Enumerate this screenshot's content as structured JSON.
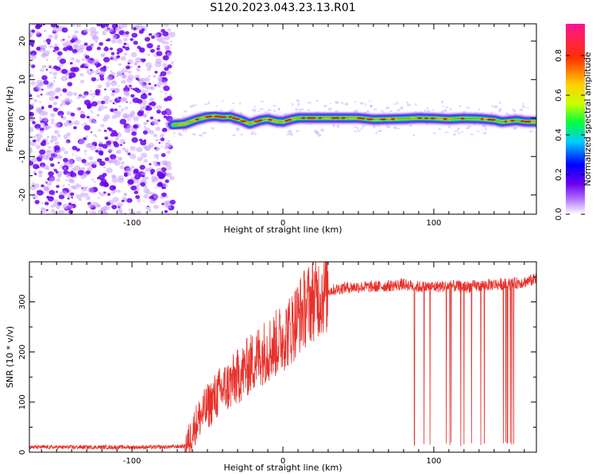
{
  "title": "S120.2023.043.23.13.R01",
  "colors": {
    "snr_line": "#e8302a",
    "colormap": [
      "#ffffff",
      "#b070ff",
      "#6a00f0",
      "#0000ff",
      "#00ccff",
      "#00ff40",
      "#c8ff00",
      "#ffd000",
      "#ff3000",
      "#ff1493"
    ]
  },
  "chart_data": [
    {
      "type": "heatmap",
      "xlabel": "Height of straight line (km)",
      "ylabel": "Frequency (Hz)",
      "xlim": [
        -168,
        168
      ],
      "ylim": [
        -25,
        24.5
      ],
      "xticks": [
        -100,
        0,
        100
      ],
      "yticks": [
        -20,
        -10,
        0,
        10,
        20
      ],
      "noise_region_x": [
        -168,
        -73
      ],
      "signal_line": {
        "x": [
          -73,
          -65,
          -58,
          -50,
          -45,
          -40,
          -35,
          -28,
          -22,
          -15,
          -10,
          -5,
          0,
          5,
          10,
          20,
          30,
          40,
          50,
          60,
          70,
          80,
          90,
          100,
          110,
          120,
          130,
          140,
          145,
          150,
          155,
          160,
          168
        ],
        "y": [
          -1.8,
          -1.5,
          -0.5,
          0.3,
          0.5,
          0.2,
          0.3,
          -0.5,
          -1.5,
          -0.6,
          -0.3,
          -0.8,
          -1.0,
          -0.4,
          0.0,
          0.0,
          0.0,
          0.0,
          0.0,
          -0.4,
          -0.3,
          -0.2,
          0.0,
          -0.1,
          -0.3,
          -0.1,
          -0.2,
          -0.5,
          -1.0,
          -0.8,
          -0.6,
          -0.9,
          -1.0
        ]
      },
      "colorbar": {
        "label": "Normalized spectral amplitude",
        "range": [
          0,
          0.96
        ],
        "ticks": [
          0.0,
          0.2,
          0.4,
          0.6,
          0.8
        ]
      }
    },
    {
      "type": "line",
      "xlabel": "Height of straight line (km)",
      "ylabel": "SNR (10 * v/v)",
      "xlim": [
        -168,
        168
      ],
      "ylim": [
        0,
        380
      ],
      "xticks": [
        -100,
        0,
        100
      ],
      "yticks": [
        0,
        100,
        200,
        300
      ],
      "series": [
        {
          "x": [
            -168,
            -120,
            -80,
            -65,
            -62,
            -58,
            -55,
            -50,
            -45,
            -40,
            -35,
            -30,
            -25,
            -20,
            -15,
            -10,
            -5,
            0,
            5,
            10,
            15,
            20,
            25,
            30,
            40,
            50,
            60,
            70,
            80,
            90,
            100,
            110,
            120,
            130,
            140,
            150,
            160,
            168
          ],
          "y": [
            10,
            10,
            10,
            12,
            25,
            55,
            70,
            90,
            110,
            125,
            135,
            150,
            165,
            180,
            195,
            205,
            215,
            230,
            245,
            270,
            290,
            305,
            315,
            322,
            328,
            330,
            330,
            332,
            335,
            330,
            330,
            332,
            330,
            332,
            335,
            335,
            340,
            345
          ]
        }
      ],
      "dropout_region_x": [
        80,
        165
      ],
      "dropout_floor": 12
    }
  ]
}
